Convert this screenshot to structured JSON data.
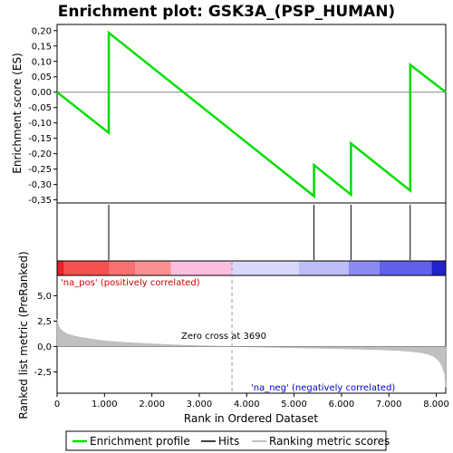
{
  "chart_data": {
    "type": "line",
    "title": "Enrichment plot: GSK3A_(PSP_HUMAN)",
    "top_panel": {
      "ylabel": "Enrichment score (ES)",
      "ylim": [
        -0.36,
        0.22
      ],
      "yticks": [
        0.2,
        0.15,
        0.1,
        0.05,
        0.0,
        -0.05,
        -0.1,
        -0.15,
        -0.2,
        -0.25,
        -0.3,
        -0.35
      ],
      "ytick_labels": [
        "0,20",
        "0,15",
        "0,10",
        "0,05",
        "0,00",
        "-0,05",
        "-0,10",
        "-0,15",
        "-0,20",
        "-0,25",
        "-0,30",
        "-0,35"
      ],
      "series": [
        {
          "name": "Enrichment profile",
          "color": "#00dd00",
          "x": [
            0,
            1090,
            1091,
            5420,
            5421,
            6200,
            6201,
            7450,
            7451,
            8200
          ],
          "y": [
            0.0,
            -0.132,
            0.193,
            -0.338,
            -0.237,
            -0.333,
            -0.167,
            -0.32,
            0.089,
            0.0
          ]
        }
      ]
    },
    "hits": {
      "name": "Hits",
      "color": "#000000",
      "x": [
        1090,
        5420,
        6200,
        7450
      ]
    },
    "color_bar": {
      "segments": [
        {
          "from": 0,
          "to": 150,
          "color": "#e8202a"
        },
        {
          "from": 150,
          "to": 1100,
          "color": "#f75050"
        },
        {
          "from": 1100,
          "to": 1650,
          "color": "#f87070"
        },
        {
          "from": 1650,
          "to": 2400,
          "color": "#fb9090"
        },
        {
          "from": 2400,
          "to": 3690,
          "color": "#fbbde0"
        },
        {
          "from": 3690,
          "to": 5100,
          "color": "#d8d8f8"
        },
        {
          "from": 5100,
          "to": 6150,
          "color": "#bdbdf7"
        },
        {
          "from": 6150,
          "to": 6800,
          "color": "#8a8af2"
        },
        {
          "from": 6800,
          "to": 7900,
          "color": "#6060ea"
        },
        {
          "from": 7900,
          "to": 8200,
          "color": "#2222cc"
        }
      ]
    },
    "bottom_panel": {
      "ylabel": "Ranked list metric (PreRanked)",
      "xlabel": "Rank in Ordered Dataset",
      "ylim": [
        -4.6,
        7.0
      ],
      "yticks": [
        5.0,
        2.5,
        0.0,
        -2.5
      ],
      "ytick_labels": [
        "5,0",
        "2,5",
        "0,0",
        "-2,5"
      ],
      "xlim": [
        0,
        8200
      ],
      "xticks": [
        0,
        1000,
        2000,
        3000,
        4000,
        5000,
        6000,
        7000,
        8000
      ],
      "xtick_labels": [
        "0",
        "1.000",
        "2.000",
        "3.000",
        "4.000",
        "5.000",
        "6.000",
        "7.000",
        "8.000"
      ],
      "metric_curve": {
        "name": "Ranking metric scores",
        "color": "#c0c0c0",
        "x": [
          0,
          20,
          60,
          120,
          200,
          350,
          500,
          700,
          1000,
          1500,
          2000,
          2500,
          3000,
          3690,
          4500,
          5500,
          6200,
          6800,
          7200,
          7500,
          7700,
          7850,
          7950,
          8050,
          8120,
          8180,
          8200
        ],
        "y": [
          2.7,
          2.2,
          1.8,
          1.5,
          1.25,
          1.05,
          0.9,
          0.75,
          0.55,
          0.38,
          0.26,
          0.16,
          0.08,
          0.0,
          -0.08,
          -0.17,
          -0.24,
          -0.32,
          -0.4,
          -0.5,
          -0.62,
          -0.8,
          -1.0,
          -1.4,
          -1.9,
          -2.8,
          -4.0
        ]
      },
      "zero_cross": 3690,
      "annotations": {
        "pos": "'na_pos' (positively correlated)",
        "neg": "'na_neg' (negatively correlated)",
        "zero": "Zero cross at 3690"
      }
    },
    "legend": [
      "Enrichment profile",
      "Hits",
      "Ranking metric scores"
    ]
  }
}
